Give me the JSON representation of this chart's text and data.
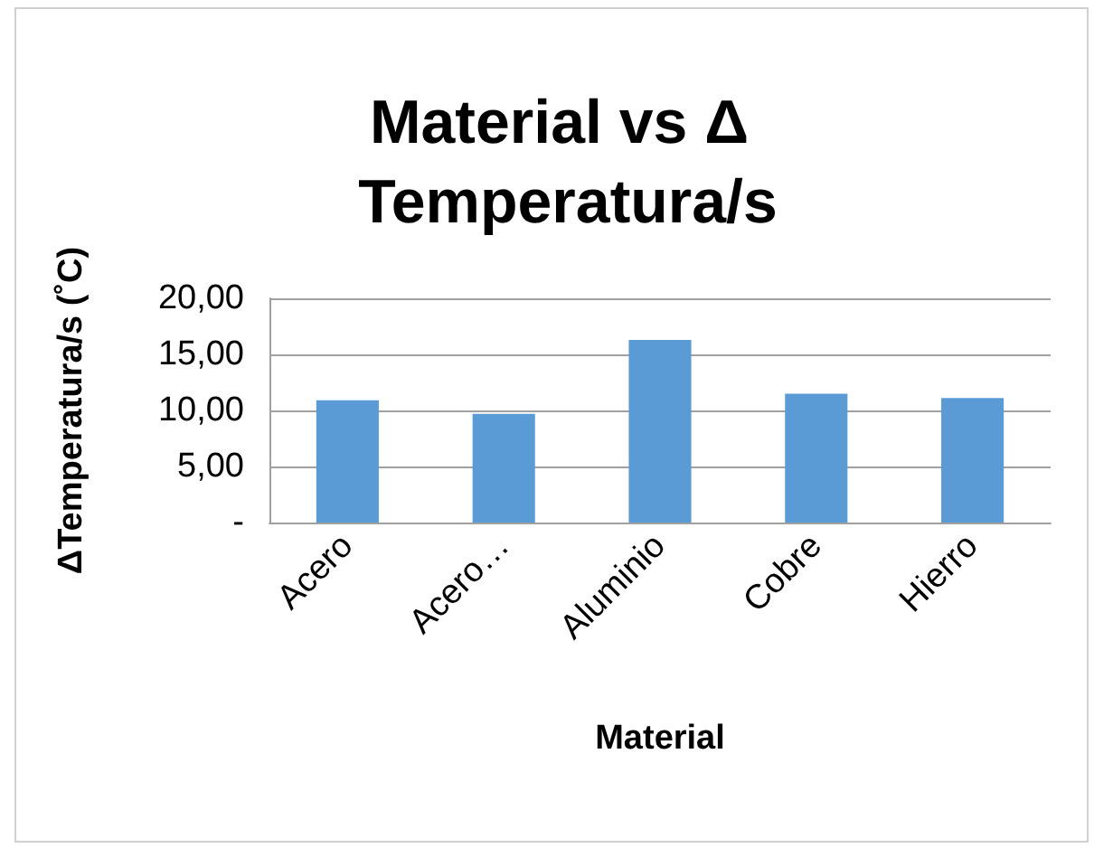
{
  "chart_data": {
    "type": "bar",
    "title": "Material vs Δ Temperatura/s",
    "xlabel": "Material",
    "ylabel": "ΔTemperatura/s (˚C)",
    "categories": [
      "Acero",
      "Acero…",
      "Aluminio",
      "Cobre",
      "Hierro"
    ],
    "values": [
      10.9,
      9.7,
      16.3,
      11.5,
      11.1
    ],
    "color": "#5b9bd5",
    "ylim": [
      0,
      20
    ],
    "yticks": [
      {
        "value": 0,
        "label": "-"
      },
      {
        "value": 5,
        "label": "5,00"
      },
      {
        "value": 10,
        "label": "10,00"
      },
      {
        "value": 15,
        "label": "15,00"
      },
      {
        "value": 20,
        "label": "20,00"
      }
    ],
    "grid": "y"
  }
}
